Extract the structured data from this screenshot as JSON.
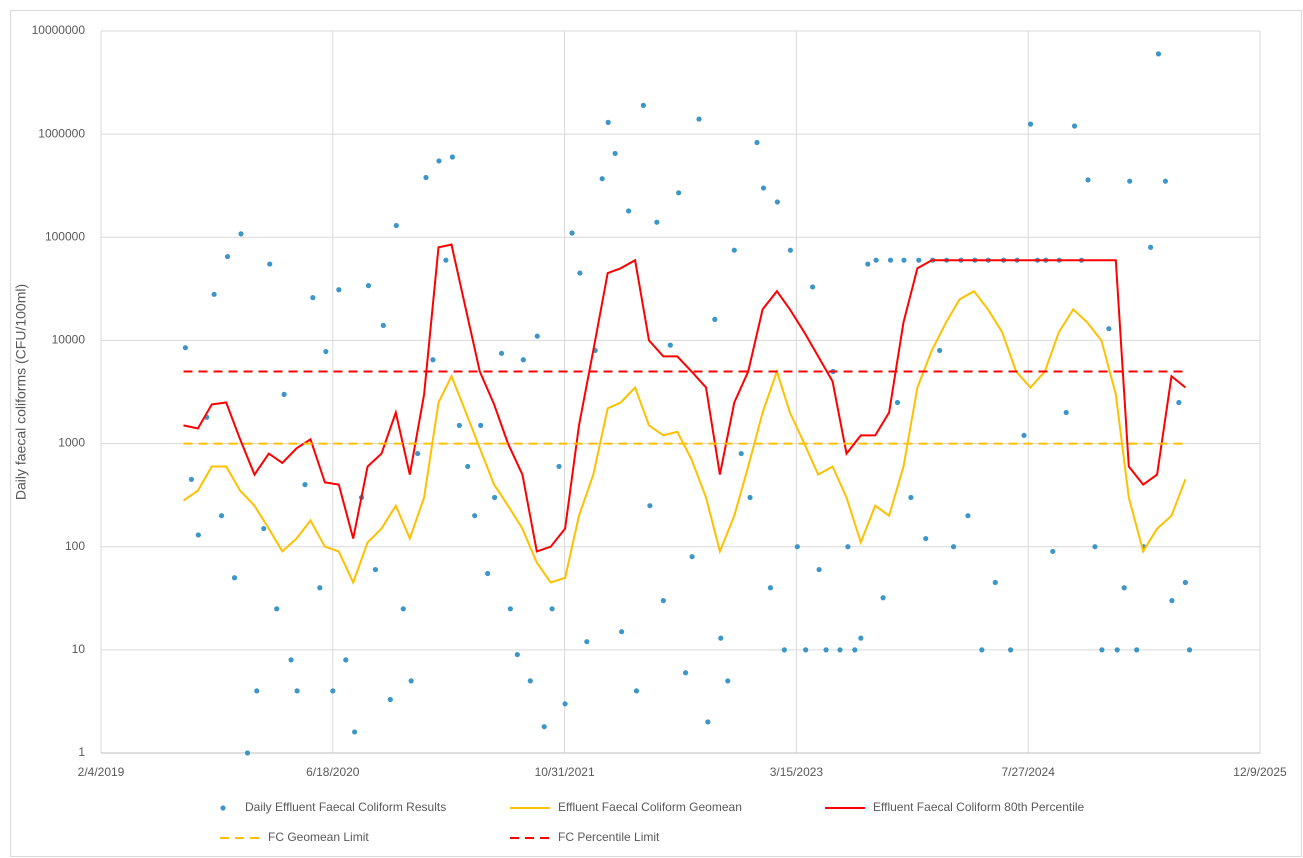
{
  "chart_data": {
    "type": "combo",
    "y_label": "Daily faecal coliforms (CFU/100ml)",
    "ylim": [
      1,
      10000000
    ],
    "log_y": true,
    "yticks": [
      1,
      10,
      100,
      1000,
      10000,
      100000,
      1000000,
      10000000
    ],
    "xlim": [
      "2019-02-04",
      "2025-12-09"
    ],
    "xticks": [
      {
        "value": "2019-02-04",
        "label": "2/4/2019"
      },
      {
        "value": "2020-06-18",
        "label": "6/18/2020"
      },
      {
        "value": "2021-10-31",
        "label": "10/31/2021"
      },
      {
        "value": "2023-03-15",
        "label": "3/15/2023"
      },
      {
        "value": "2024-07-27",
        "label": "7/27/2024"
      },
      {
        "value": "2025-12-09",
        "label": "12/9/2025"
      }
    ],
    "grid": true,
    "legend": "bottom",
    "series": [
      {
        "name": "Daily Effluent Faecal Coliform Results",
        "type": "scatter",
        "color": "#3c97c8",
        "x": [
          "2019-08-05",
          "2019-08-18",
          "2019-09-02",
          "2019-09-20",
          "2019-10-06",
          "2019-10-22",
          "2019-11-04",
          "2019-11-19",
          "2019-12-03",
          "2019-12-17",
          "2020-01-06",
          "2020-01-21",
          "2020-02-03",
          "2020-02-18",
          "2020-03-05",
          "2020-03-20",
          "2020-04-02",
          "2020-04-19",
          "2020-05-06",
          "2020-05-21",
          "2020-06-03",
          "2020-06-18",
          "2020-07-01",
          "2020-07-16",
          "2020-08-04",
          "2020-08-19",
          "2020-09-03",
          "2020-09-18",
          "2020-10-05",
          "2020-10-20",
          "2020-11-02",
          "2020-11-17",
          "2020-12-04",
          "2020-12-18",
          "2021-01-05",
          "2021-01-20",
          "2021-02-02",
          "2021-02-17",
          "2021-03-03",
          "2021-03-18",
          "2021-04-05",
          "2021-04-20",
          "2021-05-03",
          "2021-05-18",
          "2021-06-02",
          "2021-06-17",
          "2021-07-06",
          "2021-07-21",
          "2021-08-03",
          "2021-08-18",
          "2021-09-02",
          "2021-09-17",
          "2021-10-04",
          "2021-10-19",
          "2021-11-01",
          "2021-11-16",
          "2021-12-03",
          "2021-12-18",
          "2022-01-05",
          "2022-01-20",
          "2022-02-02",
          "2022-02-17",
          "2022-03-03",
          "2022-03-18",
          "2022-04-04",
          "2022-04-19",
          "2022-05-03",
          "2022-05-18",
          "2022-06-01",
          "2022-06-16",
          "2022-07-04",
          "2022-07-19",
          "2022-08-02",
          "2022-08-17",
          "2022-09-05",
          "2022-09-20",
          "2022-10-03",
          "2022-10-18",
          "2022-11-01",
          "2022-11-16",
          "2022-12-05",
          "2022-12-20",
          "2023-01-03",
          "2023-01-18",
          "2023-02-02",
          "2023-02-17",
          "2023-03-02",
          "2023-03-17",
          "2023-04-04",
          "2023-04-19",
          "2023-05-03",
          "2023-05-18",
          "2023-06-02",
          "2023-06-17",
          "2023-07-04",
          "2023-07-19",
          "2023-08-01",
          "2023-08-16",
          "2023-09-03",
          "2023-09-18",
          "2023-10-04",
          "2023-10-19",
          "2023-11-02",
          "2023-11-17",
          "2023-12-04",
          "2023-12-19",
          "2024-01-03",
          "2024-01-18",
          "2024-02-02",
          "2024-02-17",
          "2024-03-04",
          "2024-03-19",
          "2024-04-03",
          "2024-04-18",
          "2024-05-02",
          "2024-05-17",
          "2024-06-04",
          "2024-06-19",
          "2024-07-03",
          "2024-07-18",
          "2024-08-01",
          "2024-08-16",
          "2024-09-03",
          "2024-09-18",
          "2024-10-02",
          "2024-10-17",
          "2024-11-04",
          "2024-11-19",
          "2024-12-03",
          "2024-12-18",
          "2025-01-02",
          "2025-01-17",
          "2025-02-04",
          "2025-02-19",
          "2025-03-03",
          "2025-03-18",
          "2025-04-02",
          "2025-04-17",
          "2025-05-04",
          "2025-05-19",
          "2025-06-02",
          "2025-06-17",
          "2025-07-01",
          "2025-07-10"
        ],
        "values": [
          8500,
          450,
          130,
          1800,
          28000,
          200,
          65000,
          50,
          108000,
          1,
          4,
          150,
          55000,
          25,
          3000,
          8,
          4,
          400,
          26000,
          40,
          7800,
          4,
          31000,
          8,
          1.6,
          300,
          34000,
          60,
          14000,
          3.3,
          130000,
          25,
          5,
          800,
          380000,
          6500,
          550000,
          60000,
          600000,
          1500,
          600,
          200,
          1500,
          55,
          300,
          7500,
          25,
          9,
          6500,
          5,
          11000,
          1.8,
          25,
          600,
          3,
          110000,
          45000,
          12,
          8000,
          370000,
          1300000,
          650000,
          15,
          180000,
          4,
          1900000,
          250,
          140000,
          30,
          9000,
          270000,
          6,
          80,
          1400000,
          2,
          16000,
          13,
          5,
          75000,
          800,
          300,
          830000,
          300000,
          40,
          220000,
          10,
          75000,
          100,
          10,
          33000,
          60,
          10,
          5000,
          10,
          100,
          10,
          13,
          55000,
          60000,
          32,
          60000,
          2500,
          60000,
          300,
          60000,
          120,
          60000,
          8000,
          60000,
          100,
          60000,
          200,
          60000,
          10,
          60000,
          45,
          60000,
          10,
          60000,
          1200,
          1250000,
          60000,
          60000,
          90,
          60000,
          2000,
          1200000,
          60000,
          360000,
          100,
          10,
          13000,
          10,
          40,
          350000,
          10,
          100,
          80000,
          6000000,
          350000,
          30,
          2500,
          45,
          10
        ]
      },
      {
        "name": "Effluent Faecal Coliform Geomean",
        "type": "line",
        "color": "#ffc000",
        "values": [
          280,
          350,
          600,
          600,
          350,
          250,
          150,
          90,
          120,
          180,
          100,
          90,
          45,
          110,
          150,
          250,
          120,
          300,
          2500,
          4500,
          2000,
          900,
          400,
          250,
          150,
          70,
          45,
          50,
          200,
          500,
          2200,
          2500,
          3500,
          1500,
          1200,
          1300,
          700,
          300,
          90,
          200,
          600,
          2000,
          5000,
          2000,
          1000,
          500,
          600,
          300,
          110,
          250,
          200,
          600,
          3500,
          8000,
          15000,
          25000,
          30000,
          20000,
          12000,
          5000,
          3500,
          5000,
          12000,
          20000,
          15000,
          10000,
          3000,
          300,
          90,
          150,
          200,
          450
        ]
      },
      {
        "name": "Effluent Faecal Coliform 80th Percentile",
        "type": "line",
        "color": "#ff0000",
        "values": [
          1500,
          1400,
          2400,
          2500,
          1100,
          500,
          800,
          650,
          900,
          1100,
          420,
          400,
          120,
          600,
          800,
          2000,
          500,
          3000,
          80000,
          85000,
          20000,
          5000,
          2400,
          1000,
          500,
          90,
          100,
          150,
          1500,
          8000,
          45000,
          50000,
          60000,
          10000,
          7000,
          7000,
          5000,
          3500,
          500,
          2500,
          5000,
          20000,
          30000,
          20000,
          12000,
          7000,
          4000,
          800,
          1200,
          1200,
          2000,
          15000,
          50000,
          60000,
          60000,
          60000,
          60000,
          60000,
          60000,
          60000,
          60000,
          60000,
          60000,
          60000,
          60000,
          60000,
          60000,
          600,
          400,
          500,
          4500,
          3500
        ]
      },
      {
        "name": "FC Geomean Limit",
        "type": "line",
        "dash": true,
        "color": "#ffc000",
        "x": [
          "2019-08-01",
          "2025-07-01"
        ],
        "values": [
          1000,
          1000
        ]
      },
      {
        "name": "FC Percentile Limit",
        "type": "line",
        "dash": true,
        "color": "#ff0000",
        "x": [
          "2019-08-01",
          "2025-07-01"
        ],
        "values": [
          5000,
          5000
        ]
      }
    ],
    "x": [
      "2019-08-01",
      "2019-09-01",
      "2019-10-01",
      "2019-11-01",
      "2019-12-01",
      "2020-01-01",
      "2020-02-01",
      "2020-03-01",
      "2020-04-01",
      "2020-05-01",
      "2020-06-01",
      "2020-07-01",
      "2020-08-01",
      "2020-09-01",
      "2020-10-01",
      "2020-11-01",
      "2020-12-01",
      "2021-01-01",
      "2021-02-01",
      "2021-03-01",
      "2021-04-01",
      "2021-05-01",
      "2021-06-01",
      "2021-07-01",
      "2021-08-01",
      "2021-09-01",
      "2021-10-01",
      "2021-11-01",
      "2021-12-01",
      "2022-01-01",
      "2022-02-01",
      "2022-03-01",
      "2022-04-01",
      "2022-05-01",
      "2022-06-01",
      "2022-07-01",
      "2022-08-01",
      "2022-09-01",
      "2022-10-01",
      "2022-11-01",
      "2022-12-01",
      "2023-01-01",
      "2023-02-01",
      "2023-03-01",
      "2023-04-01",
      "2023-05-01",
      "2023-06-01",
      "2023-07-01",
      "2023-08-01",
      "2023-09-01",
      "2023-10-01",
      "2023-11-01",
      "2023-12-01",
      "2024-01-01",
      "2024-02-01",
      "2024-03-01",
      "2024-04-01",
      "2024-05-01",
      "2024-06-01",
      "2024-07-01",
      "2024-08-01",
      "2024-09-01",
      "2024-10-01",
      "2024-11-01",
      "2024-12-01",
      "2025-01-01",
      "2025-02-01",
      "2025-03-01",
      "2025-04-01",
      "2025-05-01",
      "2025-06-01",
      "2025-07-01"
    ]
  }
}
